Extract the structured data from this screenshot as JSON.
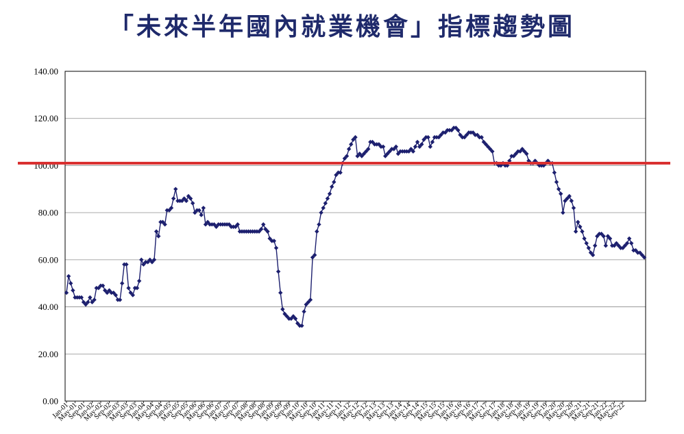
{
  "chart_data": {
    "type": "line",
    "title": "「未來半年國內就業機會」指標趨勢圖",
    "xlabel": "",
    "ylabel": "",
    "ylim": [
      0,
      140
    ],
    "yticks": [
      "0.00",
      "20.00",
      "40.00",
      "60.00",
      "80.00",
      "100.00",
      "120.00",
      "140.00"
    ],
    "grid": true,
    "legend": "none",
    "reference_line": {
      "value": 101,
      "color": "#d93030"
    },
    "series_color": "#1c1f6e",
    "x_tick_labels": [
      "Jan-01",
      "May-01",
      "Sep-01",
      "Jan-02",
      "May-02",
      "Sep-02",
      "Jan-03",
      "May-03",
      "Sep-03",
      "Jan-04",
      "May-04",
      "Sep-04",
      "Jan-05",
      "May-05",
      "Sep-05",
      "Jan-06",
      "May-06",
      "Sep-06",
      "Jan-07",
      "May-07",
      "Sep-07",
      "Jan-08",
      "May-08",
      "Sep-08",
      "Jan-09",
      "May-09",
      "Sep-09",
      "Jan-10",
      "May-10",
      "Sep-10",
      "Jan-11",
      "May-11",
      "Sep-11",
      "Jan-12",
      "May-12",
      "Sep-12",
      "Jan-13",
      "May-13",
      "Sep-13",
      "Jan-14",
      "May-14",
      "Sep-14",
      "Jan-15",
      "May-15",
      "Sep-15",
      "Jan-16",
      "May-16",
      "Sep-16",
      "Jan-17",
      "May-17",
      "Sep-17",
      "Jan-18",
      "May-18",
      "Sep-18",
      "Jan-19",
      "May-19",
      "Sep-19",
      "Jan-20",
      "May-20",
      "Sep-20",
      "Jan-21",
      "May-21",
      "Sep-21",
      "Jan-22",
      "May-22",
      "Sep-22"
    ],
    "series": [
      {
        "start": "Jan-01",
        "values": [
          46,
          53,
          50,
          47,
          44,
          44,
          44,
          44,
          42,
          41,
          42,
          44,
          42,
          43,
          48,
          48,
          49,
          49,
          47,
          46,
          47,
          46,
          46,
          45,
          43,
          43,
          50,
          58,
          58,
          48,
          46,
          45,
          48,
          48,
          51,
          60,
          58,
          59,
          59,
          60,
          59,
          60,
          72,
          70,
          76,
          76,
          75,
          81,
          81,
          82,
          86,
          90,
          85,
          85,
          85,
          86,
          85,
          87,
          86,
          84,
          80,
          81,
          81,
          79,
          82,
          75,
          76,
          75,
          75,
          75,
          74,
          75,
          75,
          75,
          75,
          75,
          75,
          74,
          74,
          74,
          75,
          72,
          72,
          72,
          72,
          72,
          72,
          72,
          72,
          72,
          72,
          73,
          75,
          73,
          72,
          69,
          68,
          68,
          65,
          55,
          46,
          39,
          37,
          36,
          35,
          35,
          36,
          35,
          33,
          32,
          32,
          38,
          41,
          42,
          43,
          61,
          62,
          72,
          75,
          80,
          82,
          84,
          86,
          88,
          91,
          93,
          96,
          97,
          97,
          101,
          103,
          104,
          107,
          109,
          111,
          112,
          104,
          105,
          104,
          105,
          106,
          107,
          110,
          110,
          109,
          109,
          109,
          108,
          108,
          104,
          105,
          106,
          107,
          107,
          108,
          105,
          106,
          106,
          106,
          106,
          106,
          107,
          106,
          108,
          110,
          108,
          109,
          111,
          112,
          112,
          108,
          110,
          112,
          112,
          112,
          113,
          114,
          114,
          115,
          115,
          115,
          116,
          116,
          115,
          113,
          112,
          112,
          113,
          114,
          114,
          114,
          113,
          113,
          112,
          112,
          110,
          109,
          108,
          107,
          106,
          101,
          101,
          100,
          100,
          101,
          100,
          100,
          102,
          104,
          104,
          105,
          106,
          106,
          107,
          106,
          105,
          102,
          101,
          101,
          102,
          101,
          100,
          100,
          100,
          101,
          102,
          101,
          101,
          97,
          93,
          90,
          88,
          80,
          85,
          86,
          87,
          85,
          82,
          72,
          76,
          74,
          72,
          69,
          67,
          65,
          63,
          62,
          66,
          70,
          71,
          71,
          70,
          66,
          70,
          69,
          66,
          66,
          67,
          66,
          65,
          65,
          66,
          67,
          69,
          67,
          64,
          64,
          63,
          63,
          62,
          61
        ]
      }
    ]
  }
}
